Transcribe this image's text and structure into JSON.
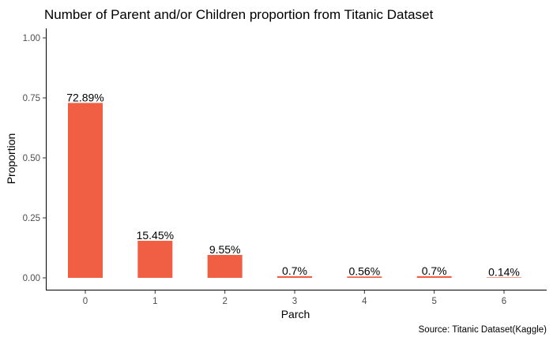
{
  "chart_data": {
    "type": "bar",
    "title": "Number of Parent and/or Children proportion from Titanic Dataset",
    "xlabel": "Parch",
    "ylabel": "Proportion",
    "caption": "Source: Titanic Dataset(Kaggle)",
    "categories": [
      "0",
      "1",
      "2",
      "3",
      "4",
      "5",
      "6"
    ],
    "values": [
      0.7289,
      0.1545,
      0.0955,
      0.007,
      0.0056,
      0.007,
      0.0014
    ],
    "data_labels": [
      "72.89%",
      "15.45%",
      "9.55%",
      "0.7%",
      "0.56%",
      "0.7%",
      "0.14%"
    ],
    "ylim": [
      0,
      1
    ],
    "yticks": [
      0,
      0.25,
      0.5,
      0.75,
      1
    ],
    "ytick_labels": [
      "0.00",
      "0.25",
      "0.50",
      "0.75",
      "1.00"
    ],
    "grid": false,
    "bar_color": "#f05f43"
  }
}
